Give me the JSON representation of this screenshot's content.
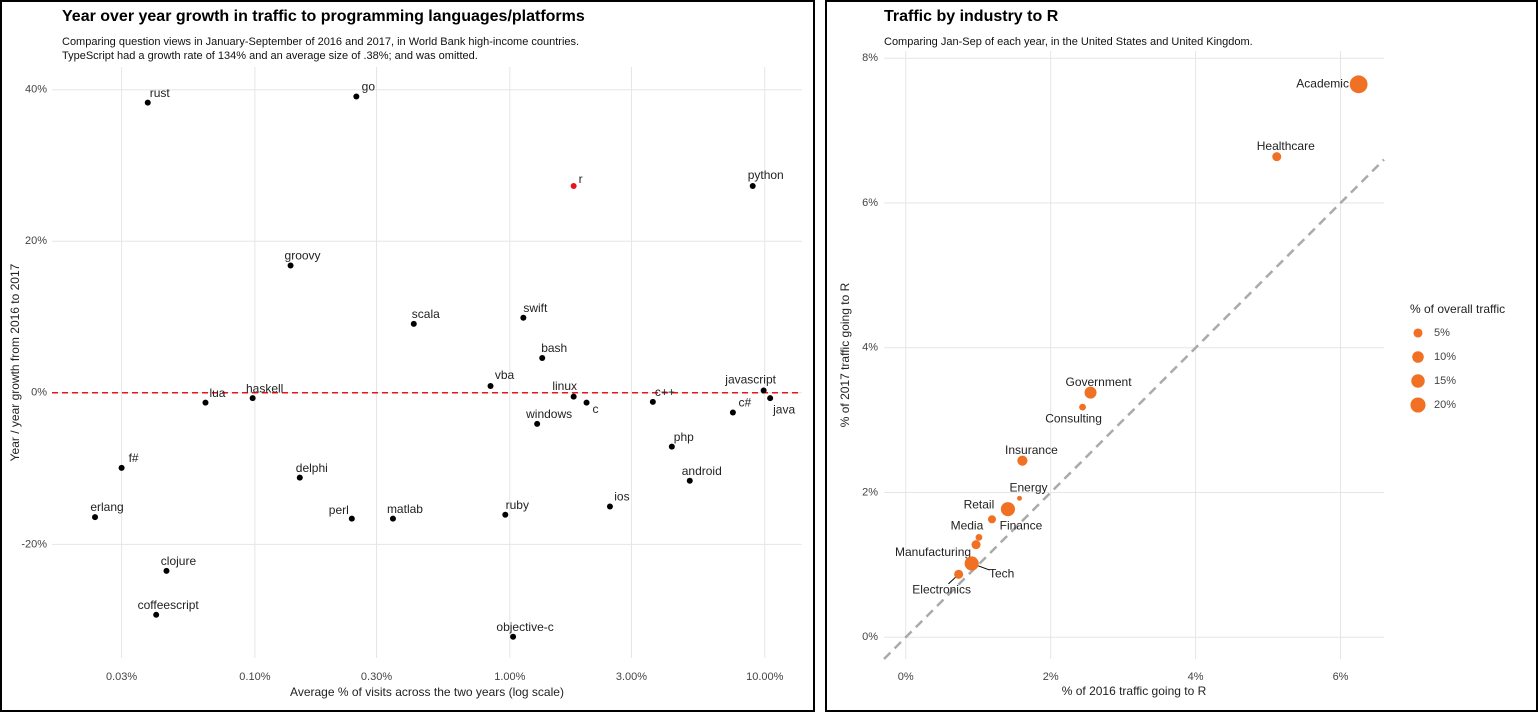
{
  "chart_data": [
    {
      "type": "scatter",
      "title": "Year over year growth in traffic to programming languages/platforms",
      "subtitle": [
        "Comparing question views in January-September of 2016 and 2017, in World Bank high-income countries.",
        "TypeScript had a growth rate of 134% and an average size of .38%; and was omitted."
      ],
      "x_label": "Average % of visits across the two years (log scale)",
      "y_label": "Year / year growth from 2016 to 2017",
      "x_log": true,
      "grid": true,
      "xlim": [
        0.016,
        14
      ],
      "ylim": [
        -35,
        43
      ],
      "xticks": [
        {
          "value": 0.03,
          "label": "0.03%"
        },
        {
          "value": 0.1,
          "label": "0.10%"
        },
        {
          "value": 0.3,
          "label": "0.30%"
        },
        {
          "value": 1,
          "label": "1.00%"
        },
        {
          "value": 3,
          "label": "3.00%"
        },
        {
          "value": 10,
          "label": "10.00%"
        }
      ],
      "yticks": [
        {
          "value": -20,
          "label": "-20%"
        },
        {
          "value": 0,
          "label": "0%"
        },
        {
          "value": 20,
          "label": "20%"
        },
        {
          "value": 40,
          "label": "40%"
        }
      ],
      "reference_line": {
        "y": 0,
        "color": "#e8141b"
      },
      "labels": [
        "rust",
        "go",
        "r",
        "python",
        "groovy",
        "scala",
        "swift",
        "bash",
        "vba",
        "lua",
        "haskell",
        "linux",
        "c",
        "c++",
        "javascript",
        "java",
        "c#",
        "windows",
        "php",
        "android",
        "f#",
        "delphi",
        "erlang",
        "perl",
        "matlab",
        "ruby",
        "ios",
        "clojure",
        "coffeescript",
        "objective-c"
      ],
      "x": [
        0.038,
        0.25,
        1.78,
        8.97,
        0.138,
        0.42,
        1.13,
        1.34,
        0.84,
        0.064,
        0.098,
        1.78,
        2.0,
        3.64,
        9.9,
        10.5,
        7.5,
        1.28,
        4.32,
        5.08,
        0.03,
        0.15,
        0.0236,
        0.24,
        0.348,
        0.96,
        2.47,
        0.045,
        0.041,
        1.03
      ],
      "values": [
        38.3,
        39.1,
        27.3,
        27.3,
        16.8,
        9.1,
        9.9,
        4.6,
        0.9,
        -1.3,
        -0.7,
        -0.5,
        -1.3,
        -1.2,
        0.3,
        -0.7,
        -2.6,
        -4.1,
        -7.1,
        -11.6,
        -9.9,
        -11.2,
        -16.4,
        -16.6,
        -16.6,
        -16.1,
        -15.0,
        -23.5,
        -29.3,
        -32.2
      ],
      "colors": [
        "#000000",
        "#000000",
        "#e8141b",
        "#000000",
        "#000000",
        "#000000",
        "#000000",
        "#000000",
        "#000000",
        "#000000",
        "#000000",
        "#000000",
        "#000000",
        "#000000",
        "#000000",
        "#000000",
        "#000000",
        "#000000",
        "#000000",
        "#000000",
        "#000000",
        "#000000",
        "#000000",
        "#000000",
        "#000000",
        "#000000",
        "#000000",
        "#000000",
        "#000000",
        "#000000"
      ]
    },
    {
      "type": "bubble",
      "title": "Traffic by industry to R",
      "subtitle": [
        "Comparing Jan-Sep of each year, in the United States and United Kingdom."
      ],
      "x_label": "% of 2016 traffic going to R",
      "y_label": "% of 2017 traffic going to R",
      "grid": true,
      "color": "#f07123",
      "xlim": [
        -0.3,
        6.6
      ],
      "ylim": [
        -0.3,
        8.1
      ],
      "xticks": [
        {
          "value": 0,
          "label": "0%"
        },
        {
          "value": 2,
          "label": "2%"
        },
        {
          "value": 4,
          "label": "4%"
        },
        {
          "value": 6,
          "label": "6%"
        }
      ],
      "yticks": [
        {
          "value": 0,
          "label": "0%"
        },
        {
          "value": 2,
          "label": "2%"
        },
        {
          "value": 4,
          "label": "4%"
        },
        {
          "value": 6,
          "label": "6%"
        },
        {
          "value": 8,
          "label": "8%"
        }
      ],
      "reference_line": {
        "slope": 1,
        "color": "#aaaaaa"
      },
      "labels": [
        "Academic",
        "Healthcare",
        "Government",
        "Consulting",
        "Insurance",
        "Energy",
        "Retail",
        "Finance",
        "Media",
        "Manufacturing",
        "Tech",
        "Electronics"
      ],
      "x": [
        6.25,
        5.12,
        2.55,
        2.44,
        1.61,
        1.57,
        1.41,
        1.19,
        1.01,
        0.97,
        0.91,
        0.73
      ],
      "values": [
        7.64,
        6.64,
        3.38,
        3.18,
        2.44,
        1.92,
        1.77,
        1.63,
        1.38,
        1.28,
        1.02,
        0.87
      ],
      "sizes": [
        30,
        5,
        11,
        2,
        7,
        0.5,
        17,
        3.5,
        2,
        5,
        17,
        5
      ],
      "legend": {
        "title": "% of overall traffic",
        "entries": [
          {
            "value": 5,
            "label": "5%"
          },
          {
            "value": 10,
            "label": "10%"
          },
          {
            "value": 15,
            "label": "15%"
          },
          {
            "value": 20,
            "label": "20%"
          }
        ]
      }
    }
  ]
}
